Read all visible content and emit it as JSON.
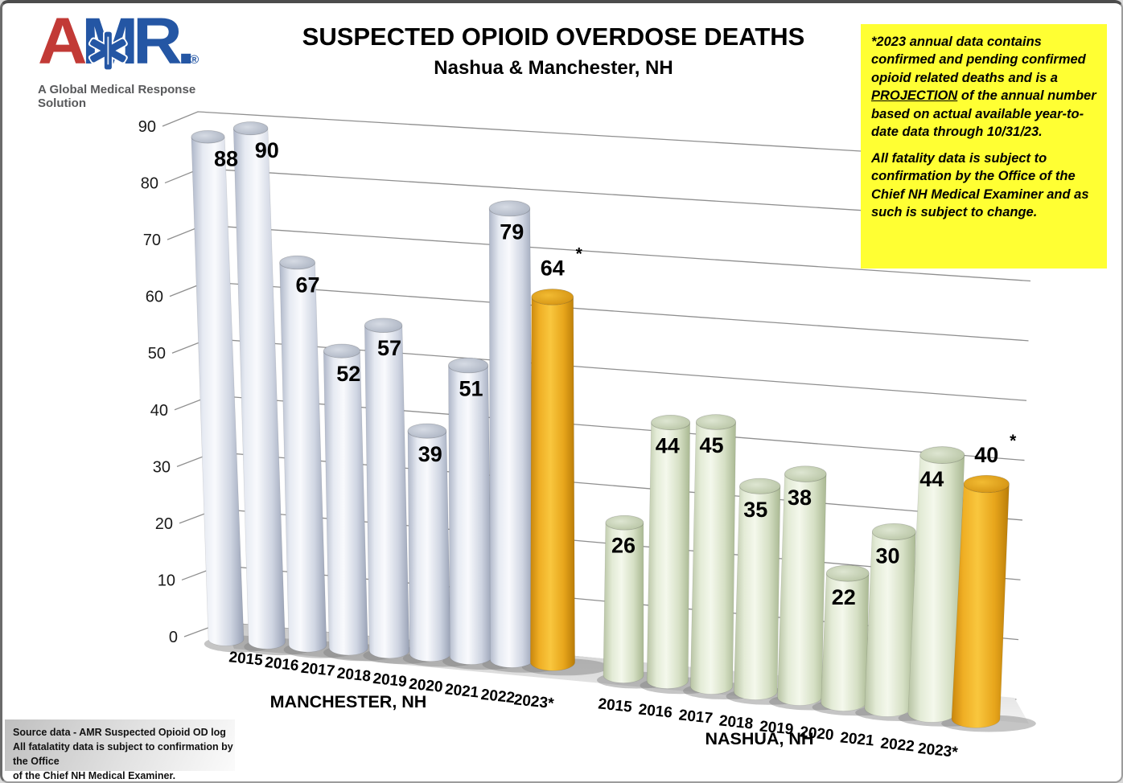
{
  "logo": {
    "letter_a": "A",
    "letters_mr": "MR",
    "period": ".",
    "registered": "®",
    "star_icon": "star-of-life",
    "tagline": "A Global Medical Response Solution",
    "color_red": "#c23a36",
    "color_blue": "#2456a4",
    "tagline_color": "#58595b"
  },
  "header": {
    "title": "SUSPECTED OPIOID OVERDOSE DEATHS",
    "subtitle": "Nashua & Manchester, NH"
  },
  "note_box": {
    "background": "#ffff33",
    "p1_before": "*2023 annual data contains confirmed and pending confirmed opioid related deaths and is a ",
    "p1_underline": "PROJECTION",
    "p1_after": " of the annual number based on actual available year-to-date data through 10/31/23.",
    "p2": "All fatality data is subject to confirmation by the Office of the Chief NH Medical Examiner and as such is subject to change."
  },
  "source_box": {
    "lines": [
      "Source data - AMR Suspected Opioid OD log",
      "All fatalatity data is subject to confirmation by the Office",
      "of the Chief NH Medical Examiner."
    ]
  },
  "chart_data": {
    "type": "bar",
    "subtype": "3d-cylinder",
    "title": "SUSPECTED OPIOID OVERDOSE DEATHS",
    "subtitle": "Nashua & Manchester, NH",
    "categories": [
      "2015",
      "2016",
      "2017",
      "2018",
      "2019",
      "2020",
      "2021",
      "2022",
      "2023*"
    ],
    "series": [
      {
        "name": "MANCHESTER, NH",
        "values": [
          88,
          90,
          67,
          52,
          57,
          39,
          51,
          79,
          64
        ]
      },
      {
        "name": "NASHUA, NH",
        "values": [
          26,
          44,
          45,
          35,
          38,
          22,
          30,
          44,
          40
        ]
      }
    ],
    "projection_index": 8,
    "projection_marker": "*",
    "xlabel": "",
    "ylabel": "",
    "ylim": [
      0,
      90
    ],
    "ytick_step": 10,
    "grid": true,
    "legend": false,
    "colors": {
      "manchester_bar": "#e3e7f1",
      "nashua_bar": "#e7efdc",
      "projection_bar": "#f2b32b",
      "gridline": "#8f8f8f",
      "label_text": "#000000"
    }
  }
}
